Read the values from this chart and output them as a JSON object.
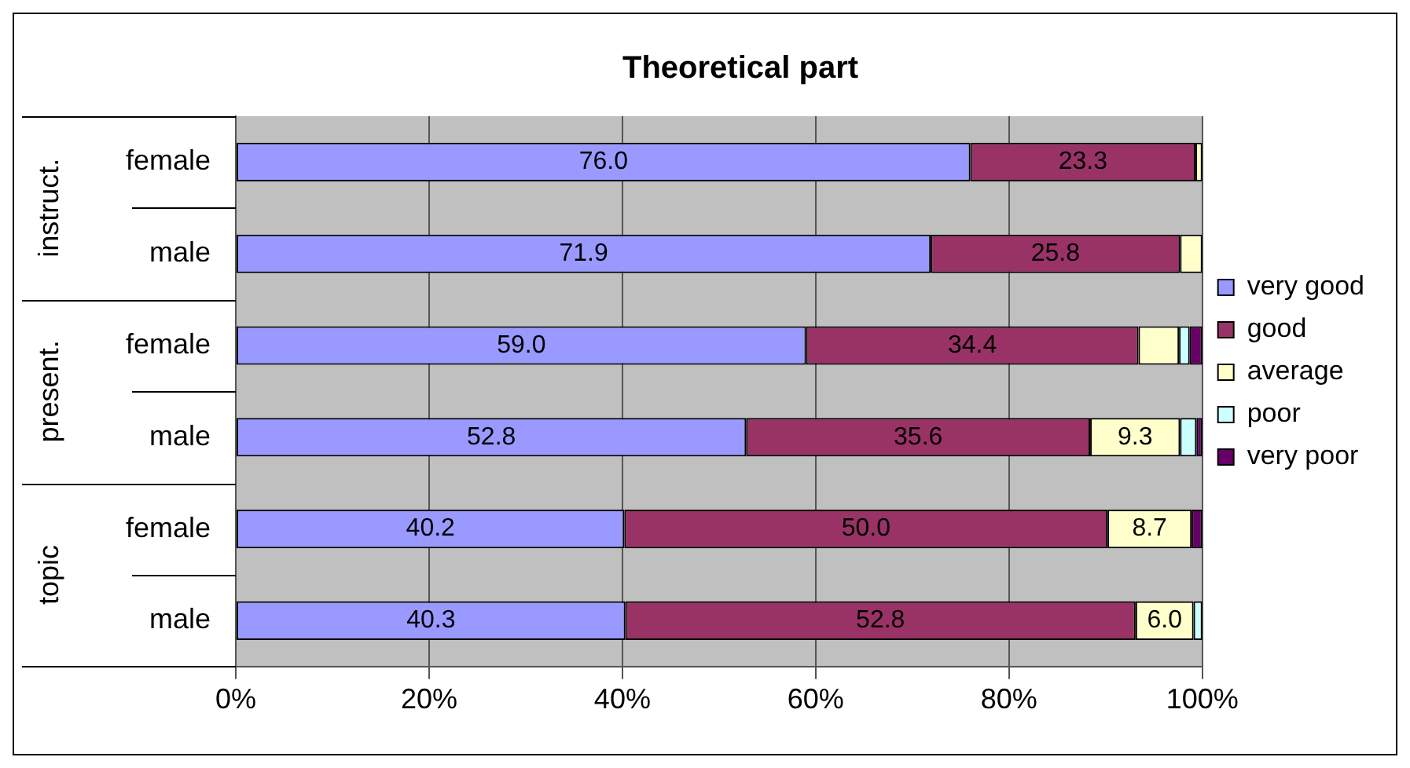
{
  "chart_data": {
    "type": "bar",
    "title": "Theoretical part",
    "orientation": "horizontal",
    "stacked": true,
    "categories": [
      "female",
      "male",
      "female",
      "male",
      "female",
      "male"
    ],
    "annotations": [
      "instruct.",
      "present.",
      "topic"
    ],
    "series": [
      {
        "name": "very good",
        "color": "#9999ff",
        "values": [
          76.0,
          71.9,
          59.0,
          52.8,
          40.2,
          40.3
        ],
        "value_labels": [
          "76.0",
          "71.9",
          "59.0",
          "52.8",
          "40.2",
          "40.3"
        ]
      },
      {
        "name": "good",
        "color": "#993366",
        "values": [
          23.3,
          25.8,
          34.4,
          35.6,
          50.0,
          52.8
        ],
        "value_labels": [
          "23.3",
          "25.8",
          "34.4",
          "35.6",
          "50.0",
          "52.8"
        ]
      },
      {
        "name": "average",
        "color": "#ffffcc",
        "values": [
          0.7,
          2.3,
          4.2,
          9.3,
          8.7,
          6.0
        ],
        "value_labels": [
          null,
          null,
          null,
          "9.3",
          "8.7",
          "6.0"
        ]
      },
      {
        "name": "poor",
        "color": "#ccffff",
        "values": [
          0,
          0,
          1.1,
          1.7,
          0,
          0.9
        ]
      },
      {
        "name": "very poor",
        "color": "#660066",
        "values": [
          0,
          0,
          1.3,
          0.6,
          1.1,
          0
        ]
      }
    ],
    "xlim": [
      0,
      100
    ],
    "xticks": [
      {
        "value": 0,
        "label": "0%"
      },
      {
        "value": 20,
        "label": "20%"
      },
      {
        "value": 40,
        "label": "40%"
      },
      {
        "value": 60,
        "label": "60%"
      },
      {
        "value": 80,
        "label": "80%"
      },
      {
        "value": 100,
        "label": "100%"
      }
    ],
    "grid": "x",
    "legend": "right"
  }
}
